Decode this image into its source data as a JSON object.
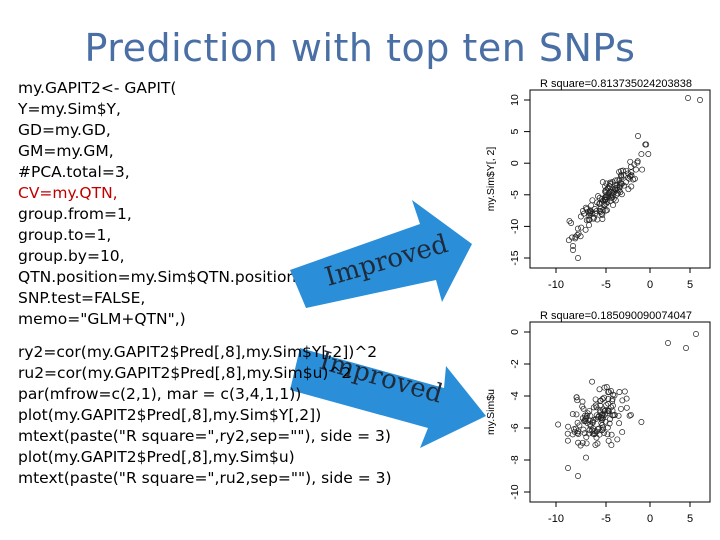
{
  "slide": {
    "title": "Prediction with top ten SNPs"
  },
  "code_block_1": [
    {
      "text": "my.GAPIT2<- GAPIT(",
      "highlight": false
    },
    {
      "text": "Y=my.Sim$Y,",
      "highlight": false
    },
    {
      "text": "GD=my.GD,",
      "highlight": false
    },
    {
      "text": "GM=my.GM,",
      "highlight": false
    },
    {
      "text": "#PCA.total=3,",
      "highlight": false
    },
    {
      "text": "CV=my.QTN,",
      "highlight": true
    },
    {
      "text": "group.from=1,",
      "highlight": false
    },
    {
      "text": "group.to=1,",
      "highlight": false
    },
    {
      "text": "group.by=10,",
      "highlight": false
    },
    {
      "text": "QTN.position=my.Sim$QTN.position,",
      "highlight": false
    },
    {
      "text": "SNP.test=FALSE,",
      "highlight": false
    },
    {
      "text": "memo=\"GLM+QTN\",)",
      "highlight": false
    }
  ],
  "code_block_2": [
    {
      "text": "ry2=cor(my.GAPIT2$Pred[,8],my.Sim$Y[,2])^2"
    },
    {
      "text": "ru2=cor(my.GAPIT2$Pred[,8],my.Sim$u)^2"
    },
    {
      "text": "par(mfrow=c(2,1), mar = c(3,4,1,1))"
    },
    {
      "text": "plot(my.GAPIT2$Pred[,8],my.Sim$Y[,2])"
    },
    {
      "text": "mtext(paste(\"R square=\",ry2,sep=\"\"), side = 3)"
    },
    {
      "text": "plot(my.GAPIT2$Pred[,8],my.Sim$u)"
    },
    {
      "text": "mtext(paste(\"R square=\",ru2,sep=\"\"), side = 3)"
    }
  ],
  "arrows": {
    "top_label": "Improved",
    "bottom_label": "Improved",
    "color": "#2a8fd8"
  },
  "plots": {
    "top": {
      "r_square_text": "R square=0.813735024203838",
      "ylabel": "my.Sim$Y[, 2]",
      "y_ticks": [
        "10",
        "5",
        "0",
        "-5",
        "-10",
        "-15"
      ],
      "x_ticks": [
        "-10",
        "-5",
        "0",
        "5"
      ]
    },
    "bottom": {
      "r_square_text": "R square=0.185090090074047",
      "ylabel": "my.Sim$u",
      "y_ticks": [
        "0",
        "-2",
        "-4",
        "-6",
        "-8",
        "-10"
      ],
      "x_ticks": [
        "-10",
        "-5",
        "0",
        "5"
      ]
    }
  }
}
